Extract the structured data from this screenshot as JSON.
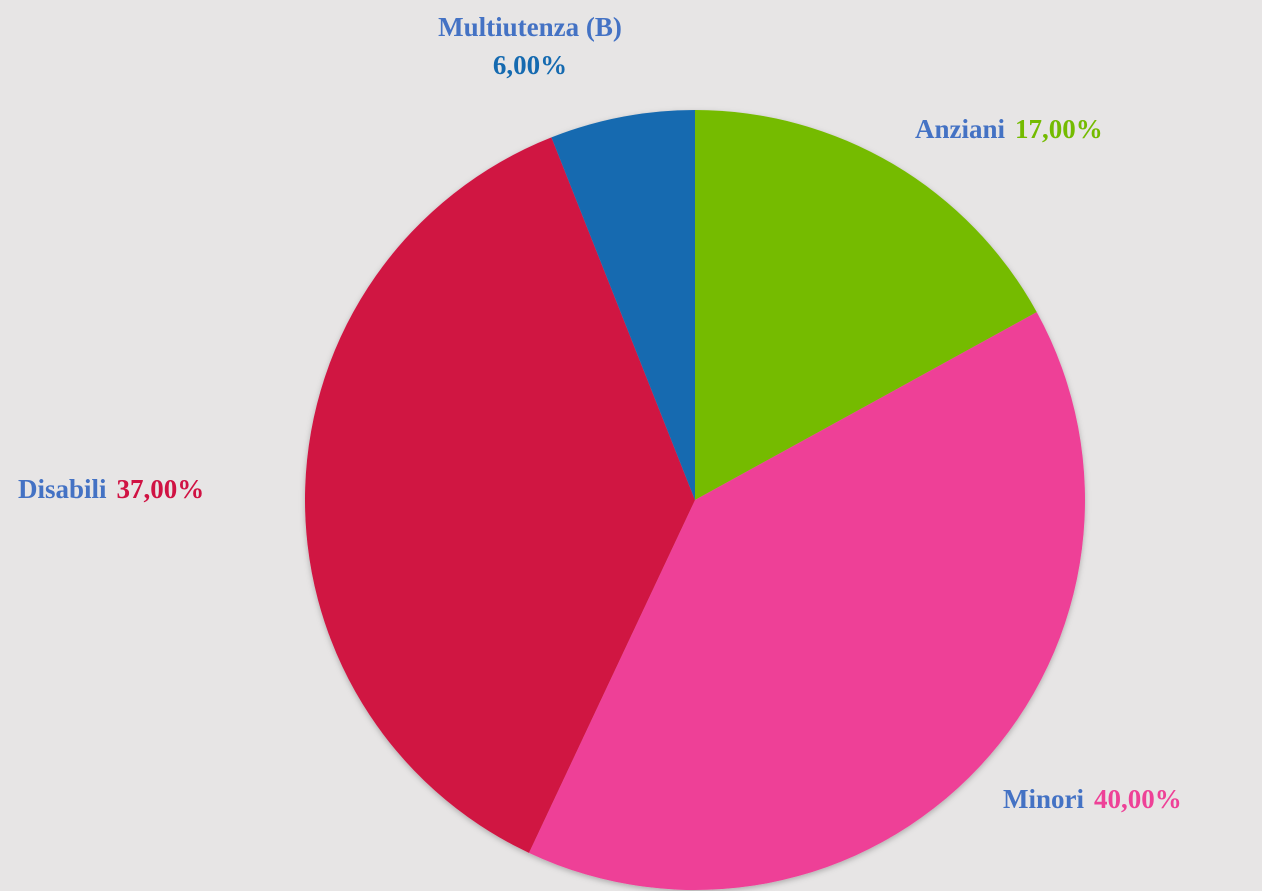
{
  "chart_data": {
    "type": "pie",
    "categories": [
      "Anziani",
      "Minori",
      "Disabili",
      "Multiutenza (B)"
    ],
    "values": [
      17,
      40,
      37,
      6
    ],
    "value_labels": [
      "17,00%",
      "40,00%",
      "37,00%",
      "6,00%"
    ],
    "colors": [
      "#74bb00",
      "#ee4197",
      "#d01243",
      "#156ab0"
    ]
  }
}
